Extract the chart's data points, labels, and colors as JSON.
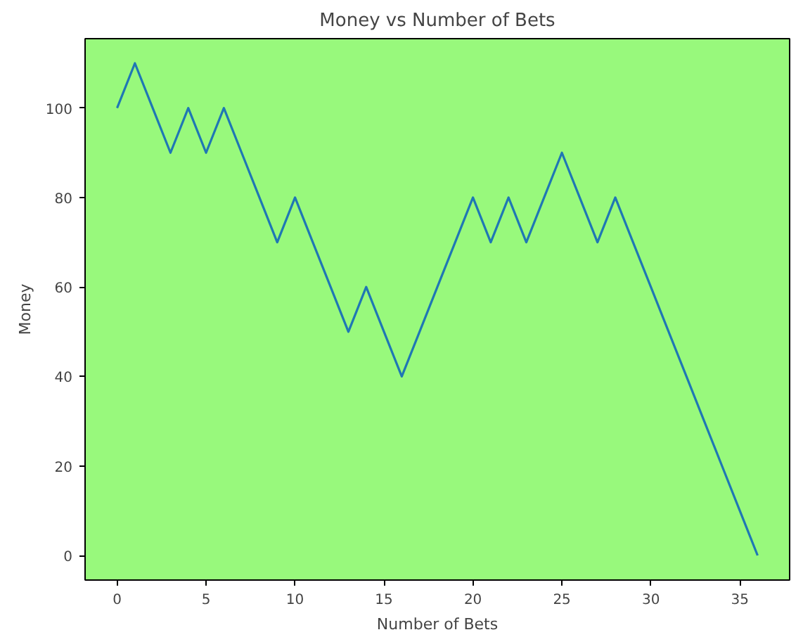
{
  "chart_data": {
    "type": "line",
    "title": "Money vs Number of Bets",
    "xlabel": "Number of Bets",
    "ylabel": "Money",
    "x": [
      0,
      1,
      2,
      3,
      4,
      5,
      6,
      7,
      8,
      9,
      10,
      11,
      12,
      13,
      14,
      15,
      16,
      17,
      18,
      19,
      20,
      21,
      22,
      23,
      24,
      25,
      26,
      27,
      28,
      29,
      30,
      31,
      32,
      33,
      34,
      35,
      36
    ],
    "series": [
      {
        "color": "#1f77b4",
        "values": [
          100,
          110,
          100,
          90,
          100,
          90,
          100,
          90,
          80,
          70,
          80,
          70,
          60,
          50,
          60,
          50,
          40,
          50,
          60,
          70,
          80,
          70,
          80,
          70,
          80,
          90,
          80,
          70,
          80,
          70,
          60,
          50,
          40,
          30,
          20,
          10,
          0
        ]
      }
    ],
    "xlim": [
      -1.8,
      37.8
    ],
    "ylim": [
      -5.5,
      115.5
    ],
    "xticks": [
      0,
      5,
      10,
      15,
      20,
      25,
      30,
      35
    ],
    "yticks": [
      0,
      20,
      40,
      60,
      80,
      100
    ],
    "grid": false,
    "marker": "none",
    "line_style": "solid"
  }
}
